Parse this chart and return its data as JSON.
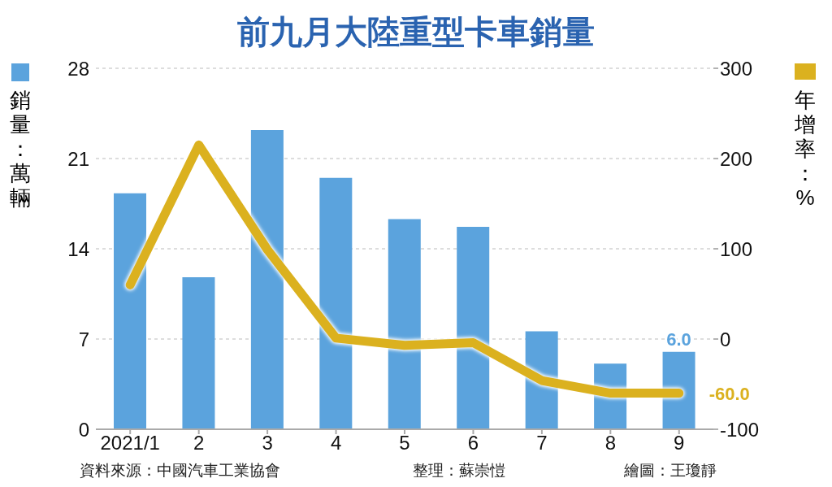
{
  "chart_data": {
    "type": "bar",
    "title": "前九月大陸重型卡車銷量",
    "ylabel": "銷量：萬輛",
    "y2label": "年增率：%",
    "categories": [
      "2021/1",
      "2",
      "3",
      "4",
      "5",
      "6",
      "7",
      "8",
      "9"
    ],
    "series": [
      {
        "color": "#5ba3dd",
        "values": [
          18.3,
          11.8,
          23.2,
          19.5,
          16.3,
          15.7,
          7.6,
          5.1,
          6.0
        ],
        "value_labels": [
          null,
          null,
          null,
          null,
          null,
          null,
          null,
          null,
          "6.0"
        ]
      },
      {
        "type": "line",
        "axis": "y2",
        "color": "#dbb11f",
        "values": [
          60,
          215,
          99,
          1,
          -7,
          -4,
          -46,
          -60,
          -60
        ],
        "value_labels": [
          null,
          null,
          null,
          null,
          null,
          null,
          null,
          null,
          "-60.0"
        ]
      }
    ],
    "ylim": [
      0,
      28
    ],
    "yticks": [
      0,
      7,
      14,
      21,
      28
    ],
    "y2lim": [
      -100,
      300
    ],
    "y2ticks": [
      -100,
      0,
      100,
      200,
      300
    ],
    "grid": "y",
    "marker": "none",
    "line_style": "solid",
    "annotations": [
      "資料來源：中國汽車工業協會",
      "整理：蘇崇愷",
      "繪圖：王瓊靜"
    ]
  }
}
